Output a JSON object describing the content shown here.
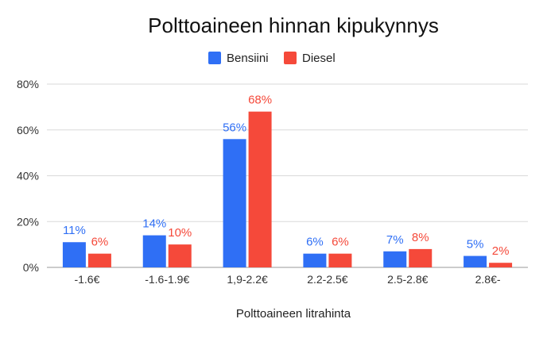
{
  "chart_data": {
    "type": "bar",
    "title": "Polttoaineen hinnan kipukynnys",
    "xlabel": "Polttoaineen litrahinta",
    "ylabel": "",
    "categories": [
      "-1.6€",
      "-1.6-1.9€",
      "1,9-2.2€",
      "2.2-2.5€",
      "2.5-2.8€",
      "2.8€-"
    ],
    "series": [
      {
        "name": "Bensiini",
        "color": "#2f6ff5",
        "values": [
          11,
          14,
          56,
          6,
          7,
          5
        ],
        "labels": [
          "11%",
          "14%",
          "56%",
          "6%",
          "7%",
          "5%"
        ]
      },
      {
        "name": "Diesel",
        "color": "#f5493a",
        "values": [
          6,
          10,
          68,
          6,
          8,
          2
        ],
        "labels": [
          "6%",
          "10%",
          "68%",
          "6%",
          "8%",
          "2%"
        ]
      }
    ],
    "ylim": [
      0,
      80
    ],
    "yticks": [
      {
        "value": 0,
        "label": "0%"
      },
      {
        "value": 20,
        "label": "20%"
      },
      {
        "value": 40,
        "label": "40%"
      },
      {
        "value": 60,
        "label": "60%"
      },
      {
        "value": 80,
        "label": "80%"
      }
    ],
    "grid": true,
    "legend_position": "top-center"
  }
}
